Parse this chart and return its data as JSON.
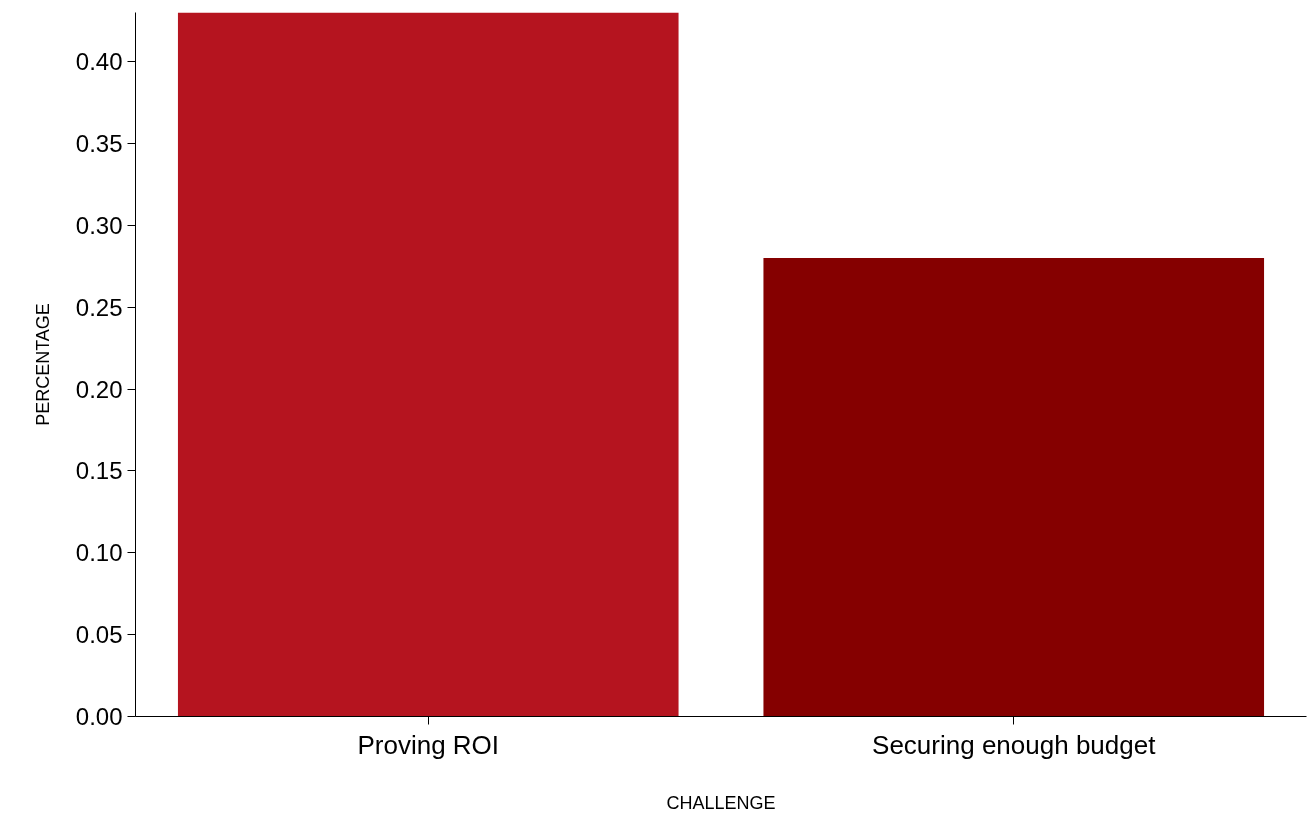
{
  "chart_data": {
    "type": "bar",
    "xlabel": "CHALLENGE",
    "ylabel": "PERCENTAGE",
    "categories": [
      "Proving ROI",
      "Securing enough budget"
    ],
    "values": [
      0.43,
      0.28
    ],
    "colors": [
      "#b5141f",
      "#850000"
    ],
    "ylim": [
      0,
      0.43
    ],
    "yticks": [
      {
        "value": 0,
        "label": "0.00"
      },
      {
        "value": 0.05,
        "label": "0.05"
      },
      {
        "value": 0.1,
        "label": "0.10"
      },
      {
        "value": 0.15,
        "label": "0.15"
      },
      {
        "value": 0.2,
        "label": "0.20"
      },
      {
        "value": 0.25,
        "label": "0.25"
      },
      {
        "value": 0.3,
        "label": "0.30"
      },
      {
        "value": 0.35,
        "label": "0.35"
      },
      {
        "value": 0.4,
        "label": "0.40"
      }
    ],
    "grid": false
  }
}
